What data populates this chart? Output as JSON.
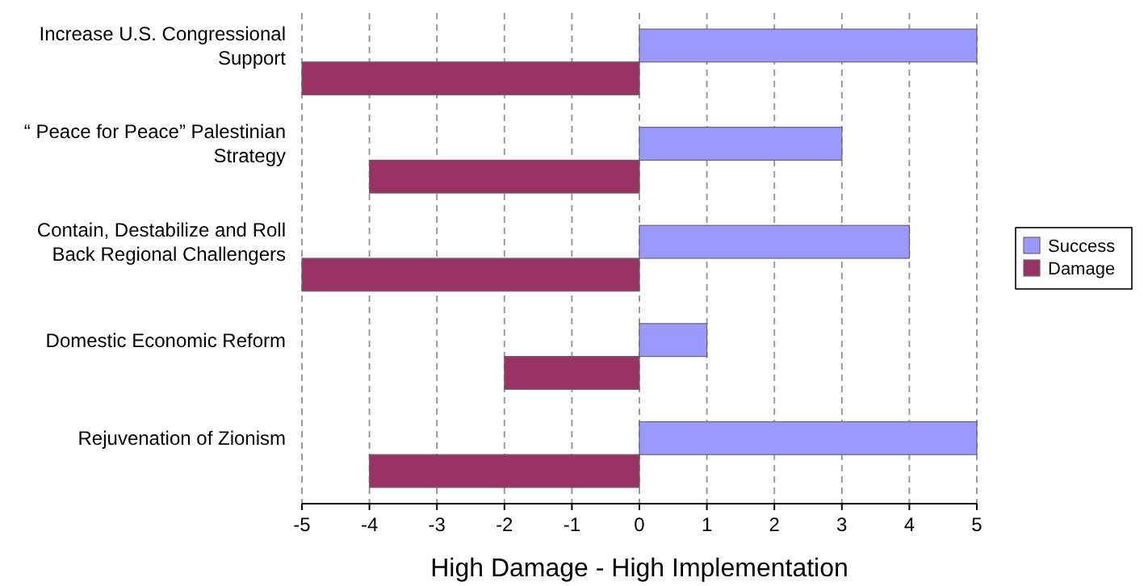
{
  "chart_data": {
    "type": "bar",
    "orientation": "horizontal",
    "xlabel": "High Damage - High Implementation",
    "categories": [
      "Increase U.S. Congressional Support",
      "“ Peace for Peace” Palestinian Strategy",
      "Contain, Destabilize and Roll Back Regional Challengers",
      "Domestic Economic Reform",
      "Rejuvenation of Zionism"
    ],
    "series": [
      {
        "name": "Success",
        "color": "#9999ff",
        "values": [
          5,
          3,
          4,
          1,
          5
        ]
      },
      {
        "name": "Damage",
        "color": "#993366",
        "values": [
          -5,
          -4,
          -5,
          -2,
          -4
        ]
      }
    ],
    "xlim": [
      -5,
      5
    ],
    "xticks": [
      -5,
      -4,
      -3,
      -2,
      -1,
      0,
      1,
      2,
      3,
      4,
      5
    ],
    "grid": "x",
    "legend": "right"
  }
}
